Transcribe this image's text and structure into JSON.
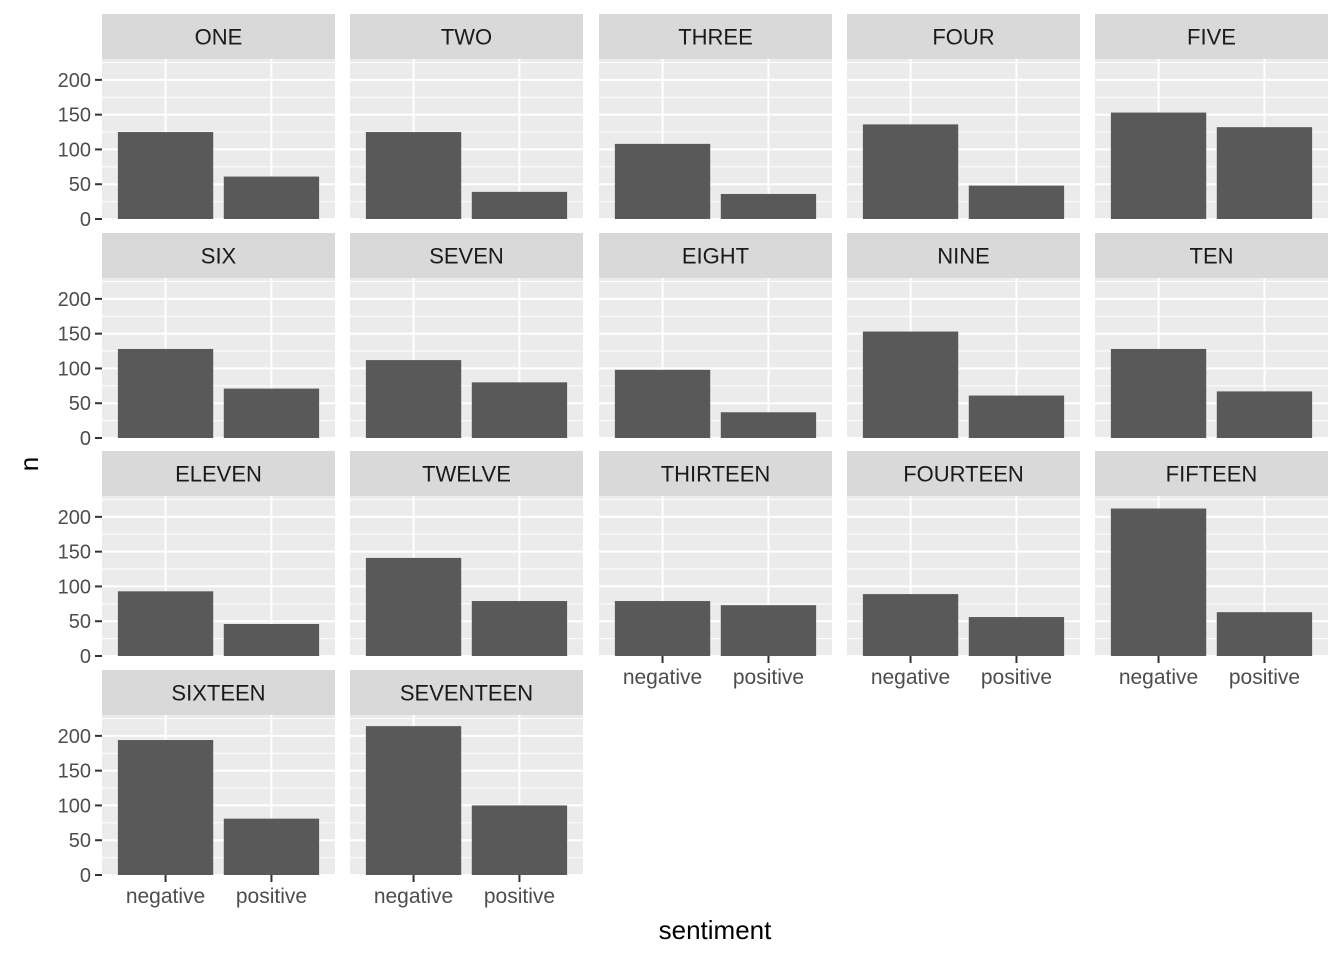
{
  "chart_data": {
    "type": "bar",
    "layout": "faceted small multiples, 5 columns, 4 rows, shared axes",
    "categories": [
      "negative",
      "positive"
    ],
    "xlabel": "sentiment",
    "ylabel": "n",
    "ylim": [
      0,
      230
    ],
    "yticks": [
      0,
      50,
      100,
      150,
      200
    ],
    "grid": true,
    "colors": {
      "bar": "#595959",
      "panel_bg": "#ebebeb",
      "grid": "#ffffff",
      "strip_bg": "#d9d9d9",
      "strip_text": "#1a1a1a",
      "tick_text": "#4d4d4d",
      "axis_title": "#000000"
    },
    "facets": [
      {
        "label": "ONE",
        "values": [
          125,
          61
        ]
      },
      {
        "label": "TWO",
        "values": [
          125,
          39
        ]
      },
      {
        "label": "THREE",
        "values": [
          108,
          36
        ]
      },
      {
        "label": "FOUR",
        "values": [
          136,
          48
        ]
      },
      {
        "label": "FIVE",
        "values": [
          153,
          132
        ]
      },
      {
        "label": "SIX",
        "values": [
          128,
          71
        ]
      },
      {
        "label": "SEVEN",
        "values": [
          112,
          80
        ]
      },
      {
        "label": "EIGHT",
        "values": [
          98,
          37
        ]
      },
      {
        "label": "NINE",
        "values": [
          153,
          61
        ]
      },
      {
        "label": "TEN",
        "values": [
          128,
          67
        ]
      },
      {
        "label": "ELEVEN",
        "values": [
          93,
          46
        ]
      },
      {
        "label": "TWELVE",
        "values": [
          141,
          79
        ]
      },
      {
        "label": "THIRTEEN",
        "values": [
          79,
          73
        ]
      },
      {
        "label": "FOURTEEN",
        "values": [
          89,
          56
        ]
      },
      {
        "label": "FIFTEEN",
        "values": [
          212,
          63
        ]
      },
      {
        "label": "SIXTEEN",
        "values": [
          194,
          81
        ]
      },
      {
        "label": "SEVENTEEN",
        "values": [
          214,
          100
        ]
      }
    ]
  }
}
